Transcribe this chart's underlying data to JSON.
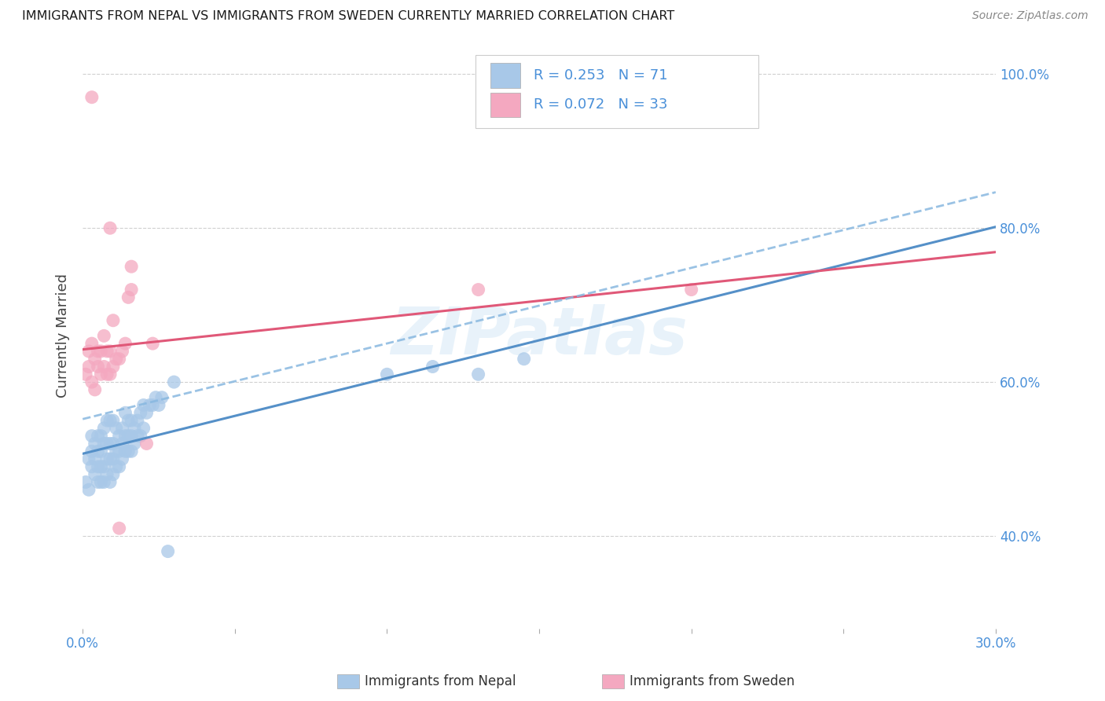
{
  "title": "IMMIGRANTS FROM NEPAL VS IMMIGRANTS FROM SWEDEN CURRENTLY MARRIED CORRELATION CHART",
  "source": "Source: ZipAtlas.com",
  "ylabel_left": "Currently Married",
  "xlabel_nepal": "Immigrants from Nepal",
  "xlabel_sweden": "Immigrants from Sweden",
  "x_min": 0.0,
  "x_max": 0.3,
  "y_min": 0.28,
  "y_max": 1.04,
  "yticks": [
    0.4,
    0.6,
    0.8,
    1.0
  ],
  "ytick_labels": [
    "40.0%",
    "60.0%",
    "80.0%",
    "100.0%"
  ],
  "xticks": [
    0.0,
    0.05,
    0.1,
    0.15,
    0.2,
    0.25,
    0.3
  ],
  "xtick_labels": [
    "0.0%",
    "",
    "",
    "",
    "",
    "",
    "30.0%"
  ],
  "nepal_R": 0.253,
  "nepal_N": 71,
  "sweden_R": 0.072,
  "sweden_N": 33,
  "nepal_color": "#a8c8e8",
  "sweden_color": "#f4a8c0",
  "nepal_line_color": "#5590c8",
  "sweden_line_color": "#e05878",
  "dashed_line_color": "#88b8e0",
  "watermark": "ZIPatlas",
  "nepal_x": [
    0.001,
    0.002,
    0.002,
    0.003,
    0.003,
    0.003,
    0.004,
    0.004,
    0.004,
    0.005,
    0.005,
    0.005,
    0.005,
    0.006,
    0.006,
    0.006,
    0.006,
    0.007,
    0.007,
    0.007,
    0.007,
    0.008,
    0.008,
    0.008,
    0.008,
    0.009,
    0.009,
    0.009,
    0.009,
    0.01,
    0.01,
    0.01,
    0.01,
    0.011,
    0.011,
    0.011,
    0.012,
    0.012,
    0.012,
    0.013,
    0.013,
    0.013,
    0.014,
    0.014,
    0.014,
    0.015,
    0.015,
    0.015,
    0.016,
    0.016,
    0.016,
    0.017,
    0.017,
    0.018,
    0.018,
    0.019,
    0.019,
    0.02,
    0.02,
    0.021,
    0.022,
    0.023,
    0.024,
    0.025,
    0.026,
    0.028,
    0.03,
    0.1,
    0.115,
    0.13,
    0.145
  ],
  "nepal_y": [
    0.47,
    0.46,
    0.5,
    0.49,
    0.51,
    0.53,
    0.48,
    0.5,
    0.52,
    0.47,
    0.49,
    0.51,
    0.53,
    0.47,
    0.49,
    0.51,
    0.53,
    0.47,
    0.49,
    0.52,
    0.54,
    0.48,
    0.5,
    0.52,
    0.55,
    0.47,
    0.5,
    0.52,
    0.55,
    0.48,
    0.5,
    0.52,
    0.55,
    0.49,
    0.51,
    0.54,
    0.49,
    0.51,
    0.53,
    0.5,
    0.52,
    0.54,
    0.51,
    0.53,
    0.56,
    0.51,
    0.53,
    0.55,
    0.51,
    0.53,
    0.55,
    0.52,
    0.54,
    0.53,
    0.55,
    0.53,
    0.56,
    0.54,
    0.57,
    0.56,
    0.57,
    0.57,
    0.58,
    0.57,
    0.58,
    0.38,
    0.6,
    0.61,
    0.62,
    0.61,
    0.63
  ],
  "sweden_x": [
    0.001,
    0.002,
    0.002,
    0.003,
    0.003,
    0.004,
    0.004,
    0.005,
    0.005,
    0.006,
    0.006,
    0.007,
    0.007,
    0.008,
    0.008,
    0.009,
    0.009,
    0.01,
    0.01,
    0.011,
    0.012,
    0.013,
    0.014,
    0.015,
    0.016,
    0.016,
    0.009,
    0.13,
    0.2,
    0.023,
    0.012,
    0.021,
    0.003
  ],
  "sweden_y": [
    0.61,
    0.62,
    0.64,
    0.6,
    0.65,
    0.59,
    0.63,
    0.62,
    0.64,
    0.61,
    0.64,
    0.62,
    0.66,
    0.61,
    0.64,
    0.61,
    0.64,
    0.62,
    0.68,
    0.63,
    0.41,
    0.64,
    0.65,
    0.71,
    0.72,
    0.75,
    0.8,
    0.72,
    0.72,
    0.65,
    0.63,
    0.52,
    0.97
  ]
}
